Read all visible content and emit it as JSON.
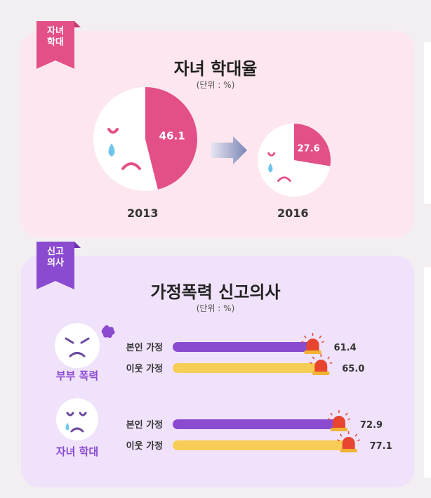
{
  "abuse_section": {
    "tag": [
      "자녀",
      "학대"
    ],
    "title": "자녀 학대율",
    "unit": "(단위 : %)"
  },
  "report_section": {
    "tag": [
      "신고",
      "의사"
    ],
    "title": "가정폭력 신고의사",
    "unit": "(단위 : %)"
  },
  "colors": {
    "pink": "#e34f87",
    "purple": "#8b4bd0",
    "yellow": "#f8cd55",
    "siren": "#e8452f",
    "tear": "#6ec6ea",
    "panel_pink": "#fde6ef",
    "panel_purple": "#efe2fa"
  },
  "chart_data": [
    {
      "type": "pie",
      "title": "자녀 학대율",
      "unit": "(단위 : %)",
      "categories": [
        "2013",
        "2016"
      ],
      "values": [
        46.1,
        27.6
      ],
      "value_labels": [
        "46.1",
        "27.6"
      ]
    },
    {
      "type": "bar",
      "orientation": "horizontal",
      "title": "가정폭력 신고의사",
      "unit": "(단위 : %)",
      "groups": [
        {
          "name": "부부 폭력",
          "rows": [
            {
              "label": "본인 가정",
              "value": 61.4,
              "value_label": "61.4",
              "color": "purple"
            },
            {
              "label": "이웃 가정",
              "value": 65.0,
              "value_label": "65.0",
              "color": "yellow"
            }
          ]
        },
        {
          "name": "자녀 학대",
          "rows": [
            {
              "label": "본인 가정",
              "value": 72.9,
              "value_label": "72.9",
              "color": "purple"
            },
            {
              "label": "이웃 가정",
              "value": 77.1,
              "value_label": "77.1",
              "color": "yellow"
            }
          ]
        }
      ]
    }
  ]
}
